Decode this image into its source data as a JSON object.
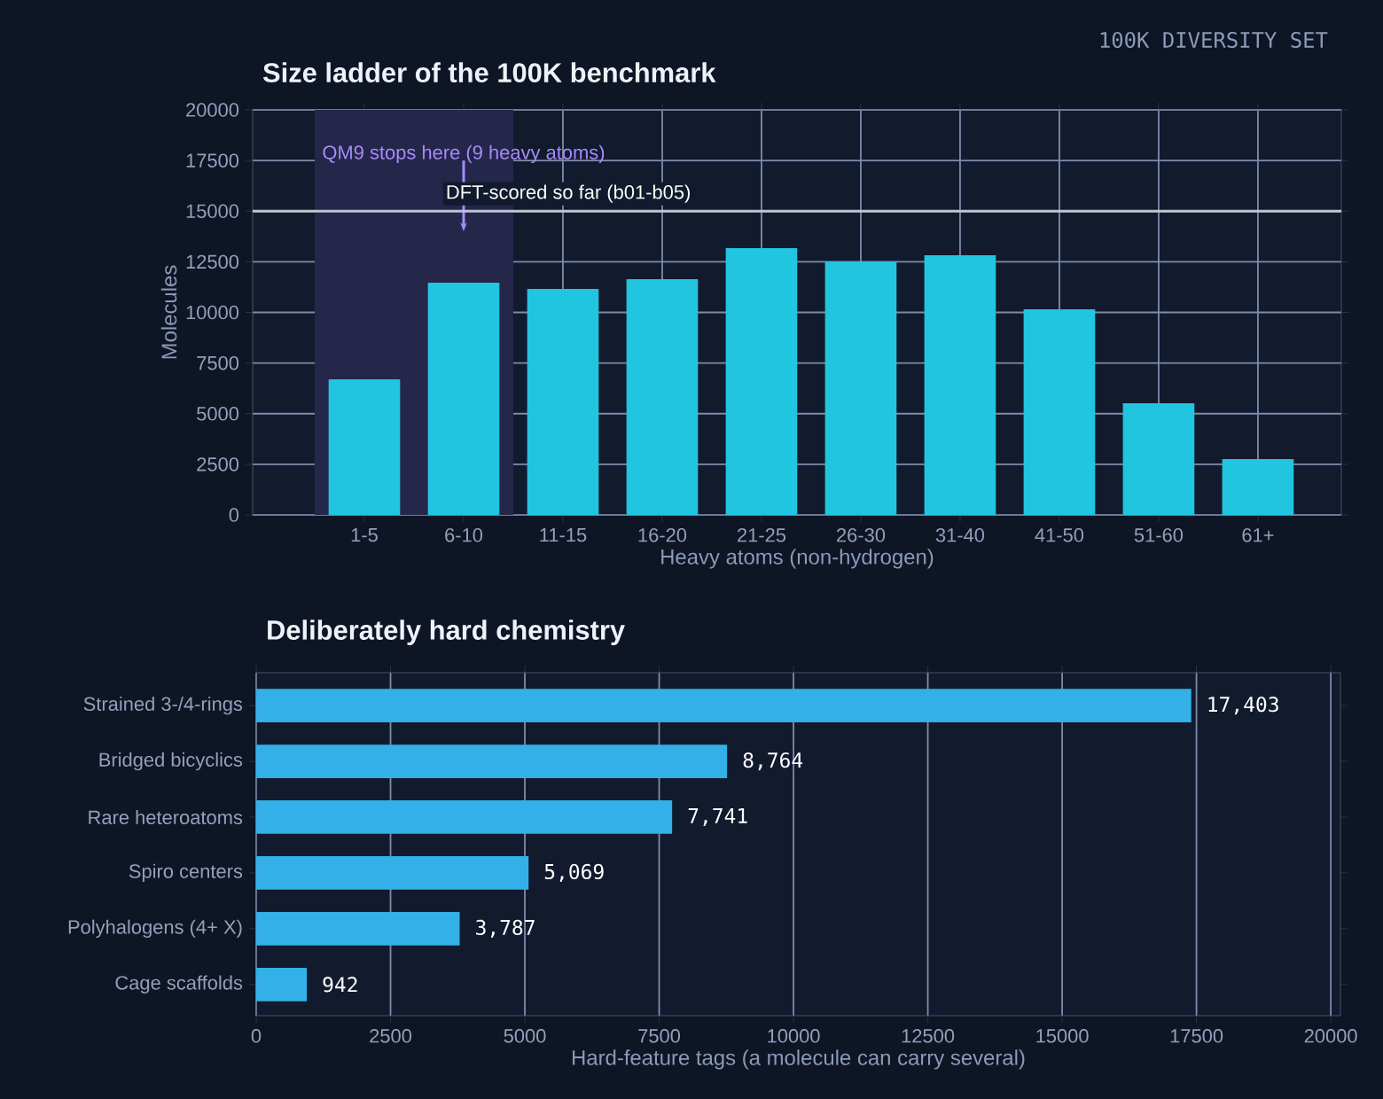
{
  "chart_data": [
    {
      "type": "bar",
      "title": "Size ladder of the 100K benchmark",
      "xlabel": "Heavy atoms (non-hydrogen)",
      "ylabel": "Molecules",
      "categories": [
        "1-5",
        "6-10",
        "11-15",
        "16-20",
        "21-25",
        "26-30",
        "31-40",
        "41-50",
        "51-60",
        "61+"
      ],
      "values": [
        6700,
        11470,
        11160,
        11640,
        13170,
        12520,
        12820,
        10150,
        5510,
        2760
      ],
      "color": "#22c5e0",
      "ylim": [
        0,
        20000
      ],
      "yticks": [
        0,
        2500,
        5000,
        7500,
        10000,
        12500,
        15000,
        17500,
        20000
      ],
      "grid": true,
      "bands": [
        {
          "axis": "x",
          "from": "1-5",
          "to": "6-10",
          "label": "QM9 stops here (9 heavy atoms)",
          "color": "#24264a"
        }
      ],
      "ref_lines": [
        {
          "axis": "y",
          "value": 15000,
          "label": "DFT-scored so far (b01-b05)",
          "color": "#c0c4d0"
        }
      ],
      "annotations": [
        "100K DIVERSITY SET"
      ]
    },
    {
      "type": "bar",
      "orientation": "horizontal",
      "title": "Deliberately hard chemistry",
      "xlabel": "Hard-feature tags (a molecule can carry several)",
      "categories": [
        "Strained 3-/4-rings",
        "Bridged bicyclics",
        "Rare heteroatoms",
        "Spiro centers",
        "Polyhalogens (4+ X)",
        "Cage scaffolds"
      ],
      "values": [
        17403,
        8764,
        7741,
        5069,
        3787,
        942
      ],
      "value_labels": [
        "17,403",
        "8,764",
        "7,741",
        "5,069",
        "3,787",
        "942"
      ],
      "color": "#33b0e8",
      "xlim": [
        0,
        20180
      ],
      "xticks": [
        0,
        2500,
        5000,
        7500,
        10000,
        12500,
        15000,
        17500,
        20000
      ],
      "grid": "x"
    }
  ]
}
